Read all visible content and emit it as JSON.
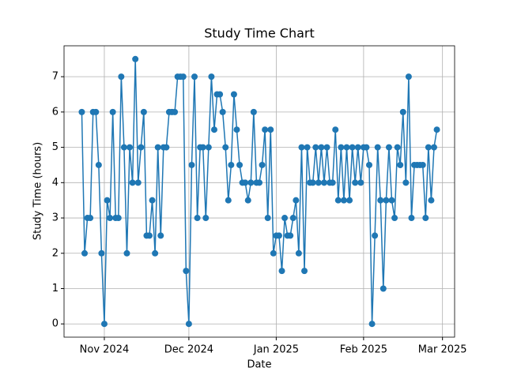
{
  "chart_data": {
    "type": "line",
    "title": "Study Time Chart",
    "x_label": "Date",
    "y_label": "Study Time (hours)",
    "categories": [
      null,
      null,
      null,
      null,
      null,
      null,
      null,
      null,
      null,
      null,
      null,
      null,
      null,
      null,
      null,
      null,
      null,
      null,
      null,
      null,
      null,
      null,
      null,
      null,
      null,
      null,
      null,
      null,
      null,
      null,
      null,
      null,
      null,
      null,
      null,
      null,
      null,
      null,
      null,
      null,
      null,
      null,
      null,
      null,
      null,
      null,
      null,
      null,
      null,
      null,
      null,
      null,
      null,
      null,
      null,
      null,
      null,
      null,
      null,
      null,
      null,
      null,
      null,
      null,
      null,
      null,
      null,
      null,
      null,
      null,
      null,
      null,
      null,
      null,
      null,
      null,
      null,
      null,
      null,
      null,
      null,
      null,
      null,
      null,
      null,
      null,
      null,
      null,
      null,
      null,
      null,
      null,
      null,
      null,
      null,
      null,
      null,
      null,
      null,
      null,
      null,
      null,
      null,
      null,
      null,
      null,
      null,
      null,
      null,
      null,
      null,
      null,
      null,
      null,
      null,
      null,
      null,
      null,
      null,
      null,
      null,
      null,
      null,
      null,
      null,
      null,
      null
    ],
    "values": [
      6,
      2,
      3,
      3,
      6,
      6,
      4.5,
      2,
      0,
      3.5,
      3,
      6,
      3,
      3,
      7,
      5,
      2,
      5,
      4,
      7.5,
      4,
      5,
      6,
      2.5,
      2.5,
      3.5,
      2,
      5,
      2.5,
      5,
      5,
      6,
      6,
      6,
      7,
      7,
      7,
      1.5,
      0,
      4.5,
      7,
      3,
      5,
      5,
      3,
      5,
      7,
      5.5,
      6.5,
      6.5,
      6,
      5,
      3.5,
      4.5,
      6.5,
      5.5,
      4.5,
      4,
      4,
      3.5,
      4,
      6,
      4,
      4,
      4.5,
      5.5,
      3,
      5.5,
      2,
      2.5,
      2.5,
      1.5,
      3,
      2.5,
      2.5,
      3,
      3.5,
      2,
      5,
      1.5,
      5,
      4,
      4,
      5,
      4,
      5,
      4,
      5,
      4,
      4,
      5.5,
      3.5,
      5,
      3.5,
      5,
      3.5,
      5,
      4,
      5,
      4,
      5,
      5,
      4.5,
      0,
      2.5,
      5,
      3.5,
      1,
      3.5,
      5,
      3.5,
      3,
      5,
      4.5,
      6,
      4,
      7,
      3,
      4.5,
      4.5,
      4.5,
      4.5,
      3,
      5,
      3.5,
      5,
      5.5
    ],
    "color": "#1f77b4",
    "xlim": [
      -6.3,
      132.3
    ],
    "xticks": [
      {
        "value": 8,
        "label": "Nov 2024"
      },
      {
        "value": 38,
        "label": "Dec 2024"
      },
      {
        "value": 69,
        "label": "Jan 2025"
      },
      {
        "value": 100,
        "label": "Feb 2025"
      },
      {
        "value": 128,
        "label": "Mar 2025"
      }
    ],
    "ylim": [
      -0.375,
      7.875
    ],
    "yticks": [
      0,
      1,
      2,
      3,
      4,
      5,
      6,
      7
    ],
    "grid": true
  }
}
